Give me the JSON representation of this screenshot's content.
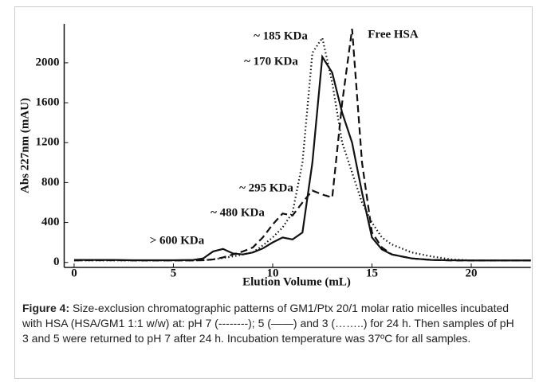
{
  "chart_data": {
    "type": "line",
    "x_label": "Elution Volume (mL)",
    "y_label": "Abs 227nm (mAU)",
    "x": [
      0,
      1,
      2,
      3,
      4,
      5,
      6,
      6.5,
      7,
      7.5,
      8,
      8.5,
      9,
      9.5,
      10,
      10.5,
      11,
      11.5,
      12,
      12.5,
      13,
      13.5,
      14,
      14.5,
      15,
      15.5,
      16,
      17,
      18,
      19,
      20,
      21,
      22,
      23
    ],
    "series": [
      {
        "color": "#111111",
        "dash": "dashed",
        "values": [
          20,
          22,
          22,
          20,
          20,
          20,
          20,
          22,
          30,
          50,
          80,
          110,
          150,
          250,
          380,
          490,
          470,
          600,
          720,
          680,
          650,
          1600,
          2340,
          1000,
          300,
          150,
          80,
          40,
          25,
          20,
          20,
          20,
          20,
          20
        ]
      },
      {
        "color": "#111111",
        "dash": "solid",
        "values": [
          25,
          25,
          25,
          22,
          22,
          22,
          25,
          40,
          110,
          135,
          90,
          80,
          100,
          140,
          200,
          250,
          230,
          300,
          1000,
          2060,
          1900,
          1500,
          1200,
          700,
          250,
          130,
          80,
          40,
          25,
          22,
          20,
          20,
          20,
          20
        ]
      },
      {
        "color": "#111111",
        "dash": "dotted",
        "values": [
          20,
          20,
          20,
          20,
          20,
          20,
          20,
          22,
          30,
          45,
          60,
          80,
          100,
          170,
          250,
          350,
          500,
          1000,
          2100,
          2250,
          1800,
          1200,
          900,
          600,
          400,
          250,
          180,
          100,
          60,
          30,
          20,
          20,
          20,
          20
        ]
      }
    ],
    "xlim": [
      -0.5,
      23.0
    ],
    "xticks": [
      0,
      5,
      10,
      15,
      20
    ],
    "ylim": [
      -50,
      2390
    ],
    "yticks": [
      0,
      400,
      800,
      1200,
      1600,
      2000
    ],
    "annotations": [
      "~ 185 KDa",
      "Free HSA",
      "~ 170 KDa",
      "~ 295 KDa",
      "~ 480 KDa",
      "> 600 KDa"
    ]
  },
  "caption": {
    "label": "Figure 4:",
    "text": "Size-exclusion chromatographic patterns of GM1/Ptx 20/1 molar ratio micelles incubated with HSA (HSA/GM1 1:1 w/w) at: pH 7 (--------); 5 (——) and 3 (……..) for 24 h. Then samples of pH 3 and 5 were returned to pH 7 after 24 h. Incubation temperature was 37ºC for all samples."
  }
}
